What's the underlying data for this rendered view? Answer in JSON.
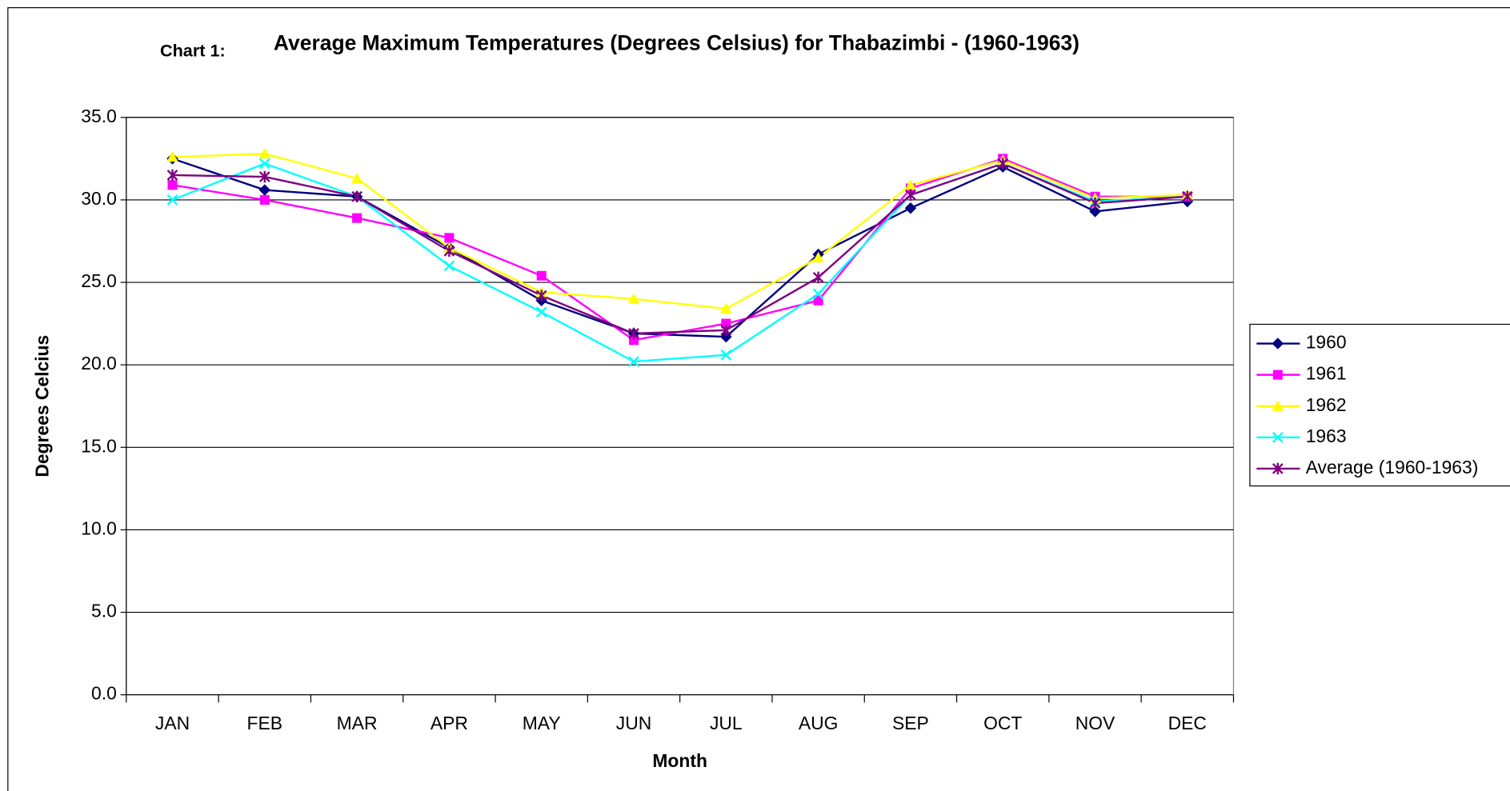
{
  "chart_data": {
    "type": "line",
    "title_prefix": "Chart 1:",
    "title": "Average Maximum Temperatures (Degrees Celsius) for Thabazimbi - (1960-1963)",
    "x_label": "Month",
    "y_label": "Degrees Celcius",
    "categories": [
      "JAN",
      "FEB",
      "MAR",
      "APR",
      "MAY",
      "JUN",
      "JUL",
      "AUG",
      "SEP",
      "OCT",
      "NOV",
      "DEC"
    ],
    "ylim": [
      0,
      35
    ],
    "yticks": [
      {
        "value": 0,
        "label": "0.0"
      },
      {
        "value": 5,
        "label": "5.0"
      },
      {
        "value": 10,
        "label": "10.0"
      },
      {
        "value": 15,
        "label": "15.0"
      },
      {
        "value": 20,
        "label": "20.0"
      },
      {
        "value": 25,
        "label": "25.0"
      },
      {
        "value": 30,
        "label": "30.0"
      },
      {
        "value": 35,
        "label": "35.0"
      }
    ],
    "grid": true,
    "legend": "right",
    "series": [
      {
        "name": "1960",
        "color": "#000080",
        "marker": "diamond",
        "values": [
          32.5,
          30.6,
          30.2,
          27.1,
          23.9,
          21.9,
          21.7,
          26.7,
          29.5,
          32.0,
          29.3,
          29.9
        ]
      },
      {
        "name": "1961",
        "color": "#ff00ff",
        "marker": "square",
        "values": [
          30.9,
          30.0,
          28.9,
          27.7,
          25.4,
          21.5,
          22.5,
          23.9,
          30.7,
          32.5,
          30.2,
          30.2
        ]
      },
      {
        "name": "1962",
        "color": "#ffff00",
        "marker": "triangle",
        "values": [
          32.6,
          32.8,
          31.3,
          27.1,
          24.4,
          24.0,
          23.4,
          26.5,
          30.9,
          32.4,
          30.1,
          30.3
        ]
      },
      {
        "name": "1963",
        "color": "#00ffff",
        "marker": "x",
        "values": [
          30.0,
          32.2,
          30.2,
          26.0,
          23.2,
          20.2,
          20.6,
          24.3,
          30.3,
          32.2,
          29.9,
          30.2
        ]
      },
      {
        "name": "Average (1960-1963)",
        "color": "#800080",
        "marker": "star",
        "values": [
          31.5,
          31.4,
          30.2,
          26.9,
          24.2,
          21.9,
          22.1,
          25.3,
          30.3,
          32.2,
          29.8,
          30.2
        ]
      }
    ]
  }
}
